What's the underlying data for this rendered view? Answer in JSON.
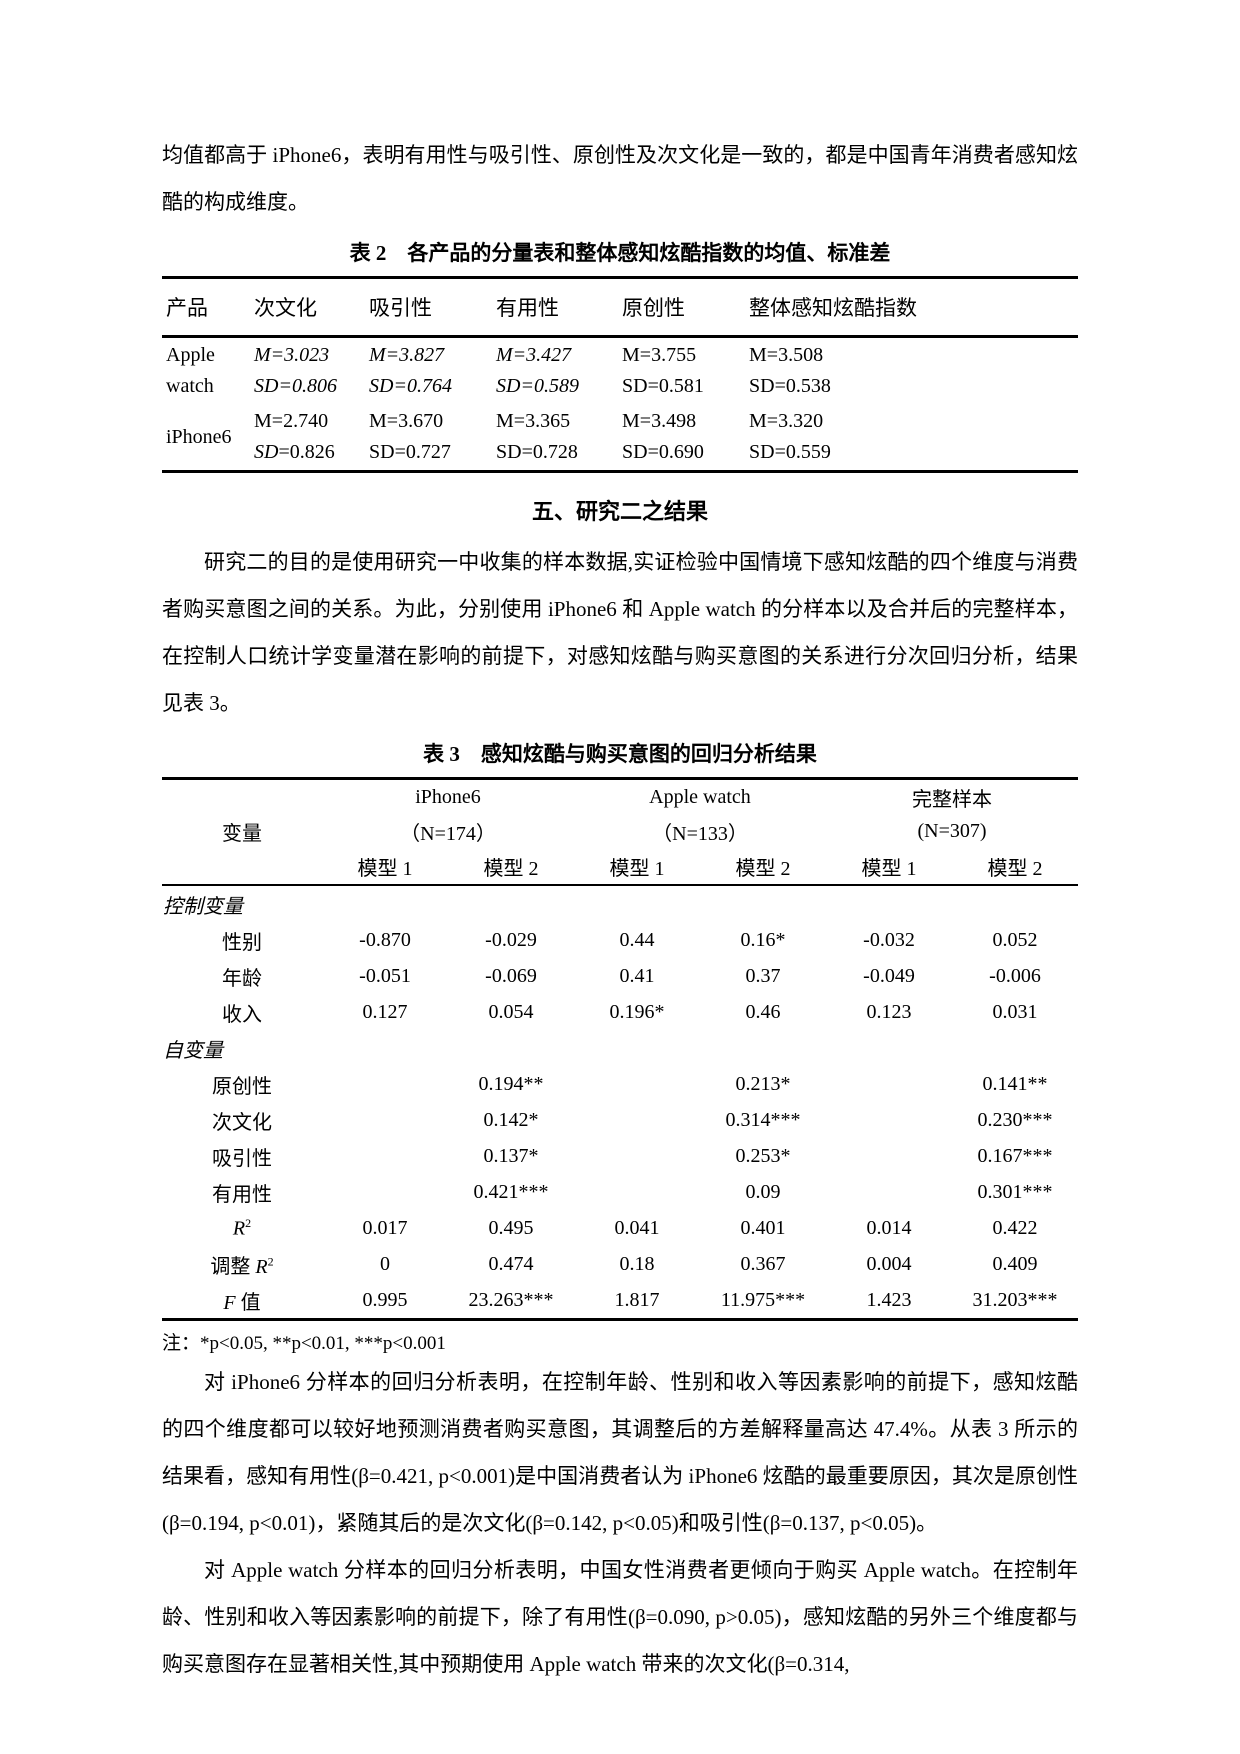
{
  "content": {
    "paragraph_top": "均值都高于 iPhone6，表明有用性与吸引性、原创性及次文化是一致的，都是中国青年消费者感知炫酷的构成维度。",
    "section_heading": "五、研究二之结果",
    "paragraph_study2": "研究二的目的是使用研究一中收集的样本数据,实证检验中国情境下感知炫酷的四个维度与消费者购买意图之间的关系。为此，分别使用 iPhone6 和 Apple watch 的分样本以及合并后的完整样本，在控制人口统计学变量潜在影响的前提下，对感知炫酷与购买意图的关系进行分次回归分析，结果见表 3。",
    "note": "注：*p<0.05, **p<0.01, ***p<0.001",
    "paragraph_iphone": "对 iPhone6 分样本的回归分析表明，在控制年龄、性别和收入等因素影响的前提下，感知炫酷的四个维度都可以较好地预测消费者购买意图，其调整后的方差解释量高达 47.4%。从表 3 所示的结果看，感知有用性(β=0.421, p<0.001)是中国消费者认为 iPhone6 炫酷的最重要原因，其次是原创性(β=0.194, p<0.01)，紧随其后的是次文化(β=0.142, p<0.05)和吸引性(β=0.137, p<0.05)。",
    "paragraph_applewatch": "对 Apple watch 分样本的回归分析表明，中国女性消费者更倾向于购买 Apple watch。在控制年龄、性别和收入等因素影响的前提下，除了有用性(β=0.090, p>0.05)，感知炫酷的另外三个维度都与购买意图存在显著相关性,其中预期使用 Apple watch 带来的次文化(β=0.314,"
  },
  "table2": {
    "caption": "表 2　各产品的分量表和整体感知炫酷指数的均值、标准差",
    "headers": [
      "产品",
      "次文化",
      "吸引性",
      "有用性",
      "原创性",
      "整体感知炫酷指数"
    ],
    "rows": [
      {
        "product_lines": [
          "Apple",
          "watch"
        ],
        "m": [
          "M=3.023",
          "M=3.827",
          "M=3.427",
          "M=3.755",
          "M=3.508"
        ],
        "sd": [
          "SD=0.806",
          "SD=0.764",
          "SD=0.589",
          "SD=0.581",
          "SD=0.538"
        ]
      },
      {
        "product_lines": [
          "iPhone6"
        ],
        "m": [
          "M=2.740",
          "M=3.670",
          "M=3.365",
          "M=3.498",
          "M=3.320"
        ],
        "sd": [
          "SD=0.826",
          "SD=0.727",
          "SD=0.728",
          "SD=0.690",
          "SD=0.559"
        ]
      }
    ]
  },
  "table3": {
    "caption": "表 3　感知炫酷与购买意图的回归分析结果",
    "variable_label": "变量",
    "groups": [
      {
        "name": "iPhone6",
        "n": "（N=174）"
      },
      {
        "name": "Apple watch",
        "n": "（N=133）"
      },
      {
        "name": "完整样本",
        "n": "(N=307)"
      }
    ],
    "models": [
      "模型 1",
      "模型 2",
      "模型 1",
      "模型 2",
      "模型 1",
      "模型 2"
    ],
    "rows": [
      {
        "type": "section",
        "label": "控制变量"
      },
      {
        "label": "性别",
        "values": [
          "-0.870",
          "-0.029",
          "0.44",
          "0.16*",
          "-0.032",
          "0.052"
        ]
      },
      {
        "label": "年龄",
        "values": [
          "-0.051",
          "-0.069",
          "0.41",
          "0.37",
          "-0.049",
          "-0.006"
        ]
      },
      {
        "label": "收入",
        "values": [
          "0.127",
          "0.054",
          "0.196*",
          "0.46",
          "0.123",
          "0.031"
        ]
      },
      {
        "type": "section",
        "label": "自变量"
      },
      {
        "label": "原创性",
        "values": [
          "",
          "0.194**",
          "",
          "0.213*",
          "",
          "0.141**"
        ]
      },
      {
        "label": "次文化",
        "values": [
          "",
          "0.142*",
          "",
          "0.314***",
          "",
          "0.230***"
        ]
      },
      {
        "label": "吸引性",
        "values": [
          "",
          "0.137*",
          "",
          "0.253*",
          "",
          "0.167***"
        ]
      },
      {
        "label": "有用性",
        "values": [
          "",
          "0.421***",
          "",
          "0.09",
          "",
          "0.301***"
        ]
      },
      {
        "label_it": "R",
        "label_sup": "2",
        "values": [
          "0.017",
          "0.495",
          "0.041",
          "0.401",
          "0.014",
          "0.422"
        ]
      },
      {
        "label_pre": "调整 ",
        "label_it": "R",
        "label_sup": "2",
        "values": [
          "0",
          "0.474",
          "0.18",
          "0.367",
          "0.004",
          "0.409"
        ]
      },
      {
        "label_it": "F",
        "label_post": " 值",
        "values": [
          "0.995",
          "23.263***",
          "1.817",
          "11.975***",
          "1.423",
          "31.203***"
        ]
      }
    ]
  }
}
